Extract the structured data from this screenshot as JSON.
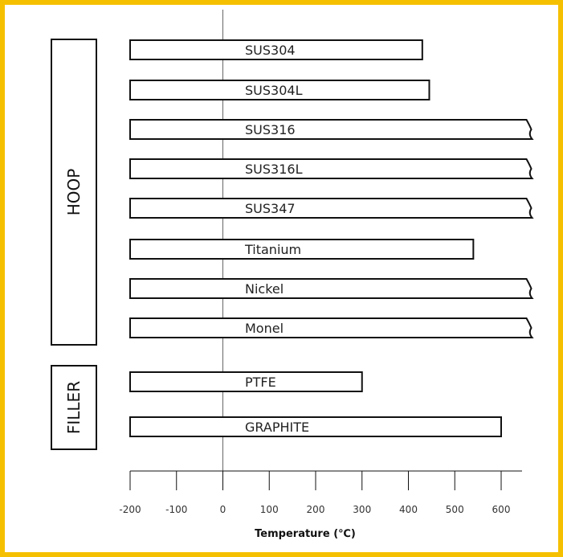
{
  "chart_data": {
    "type": "bar",
    "orientation": "horizontal",
    "categories": [
      "SUS304",
      "SUS304L",
      "SUS316",
      "SUS316L",
      "SUS347",
      "Titanium",
      "Nickel",
      "Monel",
      "PTFE",
      "GRAPHITE"
    ],
    "series": [
      {
        "values": [
          [
            -200,
            430
          ],
          [
            -200,
            445
          ],
          [
            -200,
            665
          ],
          [
            -200,
            665
          ],
          [
            -200,
            665
          ],
          [
            -200,
            540
          ],
          [
            -200,
            665
          ],
          [
            -200,
            665
          ],
          [
            -200,
            300
          ],
          [
            -200,
            600
          ]
        ]
      }
    ],
    "open_ended": [
      false,
      false,
      true,
      true,
      true,
      false,
      true,
      true,
      false,
      false
    ],
    "groups": [
      {
        "label": "HOOP",
        "categories": [
          "SUS304",
          "SUS304L",
          "SUS316",
          "SUS316L",
          "SUS347",
          "Titanium",
          "Nickel",
          "Monel"
        ]
      },
      {
        "label": "FILLER",
        "categories": [
          "PTFE",
          "GRAPHITE"
        ]
      }
    ],
    "x_ticks": [
      -200,
      -100,
      0,
      100,
      200,
      300,
      400,
      500,
      600
    ],
    "xlim": [
      -200,
      650
    ],
    "xlabel": "Temperature (℃)",
    "title": "",
    "grid": false,
    "zero_line": true,
    "colors": {
      "bar_fill": "#ffffff",
      "bar_stroke": "#111111",
      "frame": "#f5c000"
    }
  }
}
